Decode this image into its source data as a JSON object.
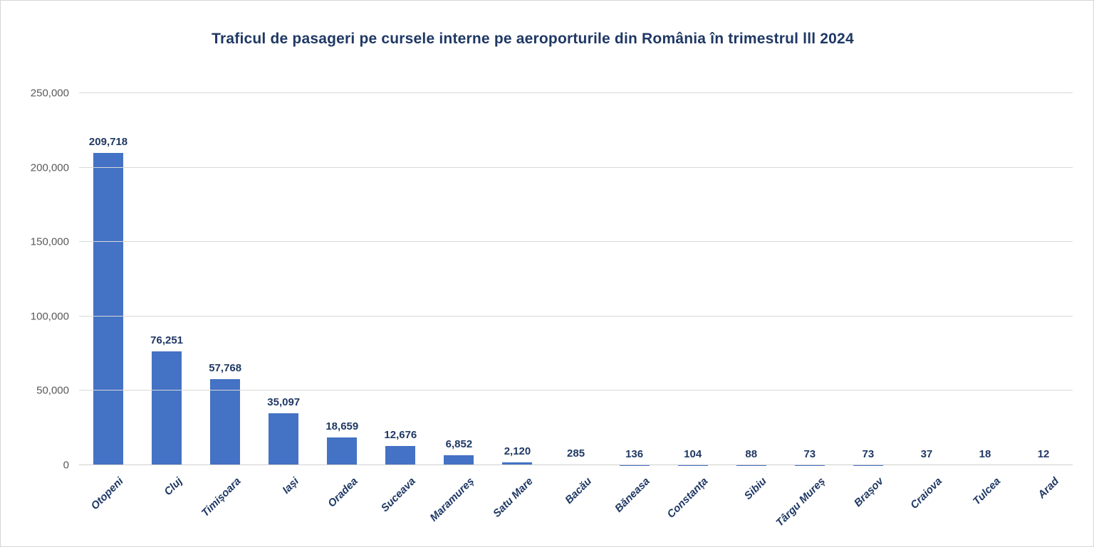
{
  "chart_data": {
    "type": "bar",
    "title": "Traficul de pasageri pe cursele interne pe aeroporturile din România în trimestrul lll 2024",
    "categories": [
      "Otopeni",
      "Cluj",
      "Timișoara",
      "Iași",
      "Oradea",
      "Suceava",
      "Maramureș",
      "Satu Mare",
      "Bacău",
      "Băneasa",
      "Constanța",
      "Sibiu",
      "Târgu Mureș",
      "Brașov",
      "Craiova",
      "Tulcea",
      "Arad"
    ],
    "values": [
      209718,
      76251,
      57768,
      35097,
      18659,
      12676,
      6852,
      2120,
      285,
      136,
      104,
      88,
      73,
      73,
      37,
      18,
      12
    ],
    "value_labels": [
      "209,718",
      "76,251",
      "57,768",
      "35,097",
      "18,659",
      "12,676",
      "6,852",
      "2,120",
      "285",
      "136",
      "104",
      "88",
      "73",
      "73",
      "37",
      "18",
      "12"
    ],
    "xlabel": "",
    "ylabel": "",
    "ylim": [
      0,
      250000
    ],
    "yticks": [
      0,
      50000,
      100000,
      150000,
      200000,
      250000
    ],
    "ytick_labels": [
      "0",
      "50,000",
      "100,000",
      "150,000",
      "200,000",
      "250,000"
    ],
    "grid": true,
    "legend": false,
    "colors": {
      "bar": "#4472C4",
      "data_label": "#1F3864",
      "title": "#1F3864",
      "axis_text": "#595959",
      "gridline": "#D9D9D9"
    }
  }
}
